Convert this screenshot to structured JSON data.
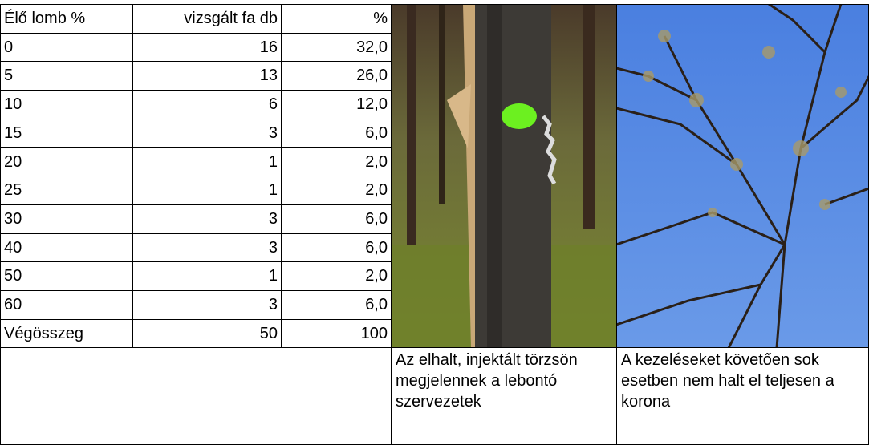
{
  "table": {
    "header": [
      "Élő lomb %",
      "vizsgált fa db",
      "%"
    ],
    "rows": [
      [
        "0",
        "16",
        "32,0"
      ],
      [
        "5",
        "13",
        "26,0"
      ],
      [
        "10",
        "6",
        "12,0"
      ],
      [
        "15",
        "3",
        "6,0"
      ],
      [
        "20",
        "1",
        "2,0"
      ],
      [
        "25",
        "1",
        "2,0"
      ],
      [
        "30",
        "3",
        "6,0"
      ],
      [
        "40",
        "3",
        "6,0"
      ],
      [
        "50",
        "1",
        "2,0"
      ],
      [
        "60",
        "3",
        "6,0"
      ],
      [
        "Végösszeg",
        "50",
        "100"
      ]
    ]
  },
  "captions": [
    "Az elhalt, injektált törzsön megjelennek a lebontó szervezetek",
    "A kezeléseket követően sok esetben nem halt el teljesen a korona"
  ]
}
